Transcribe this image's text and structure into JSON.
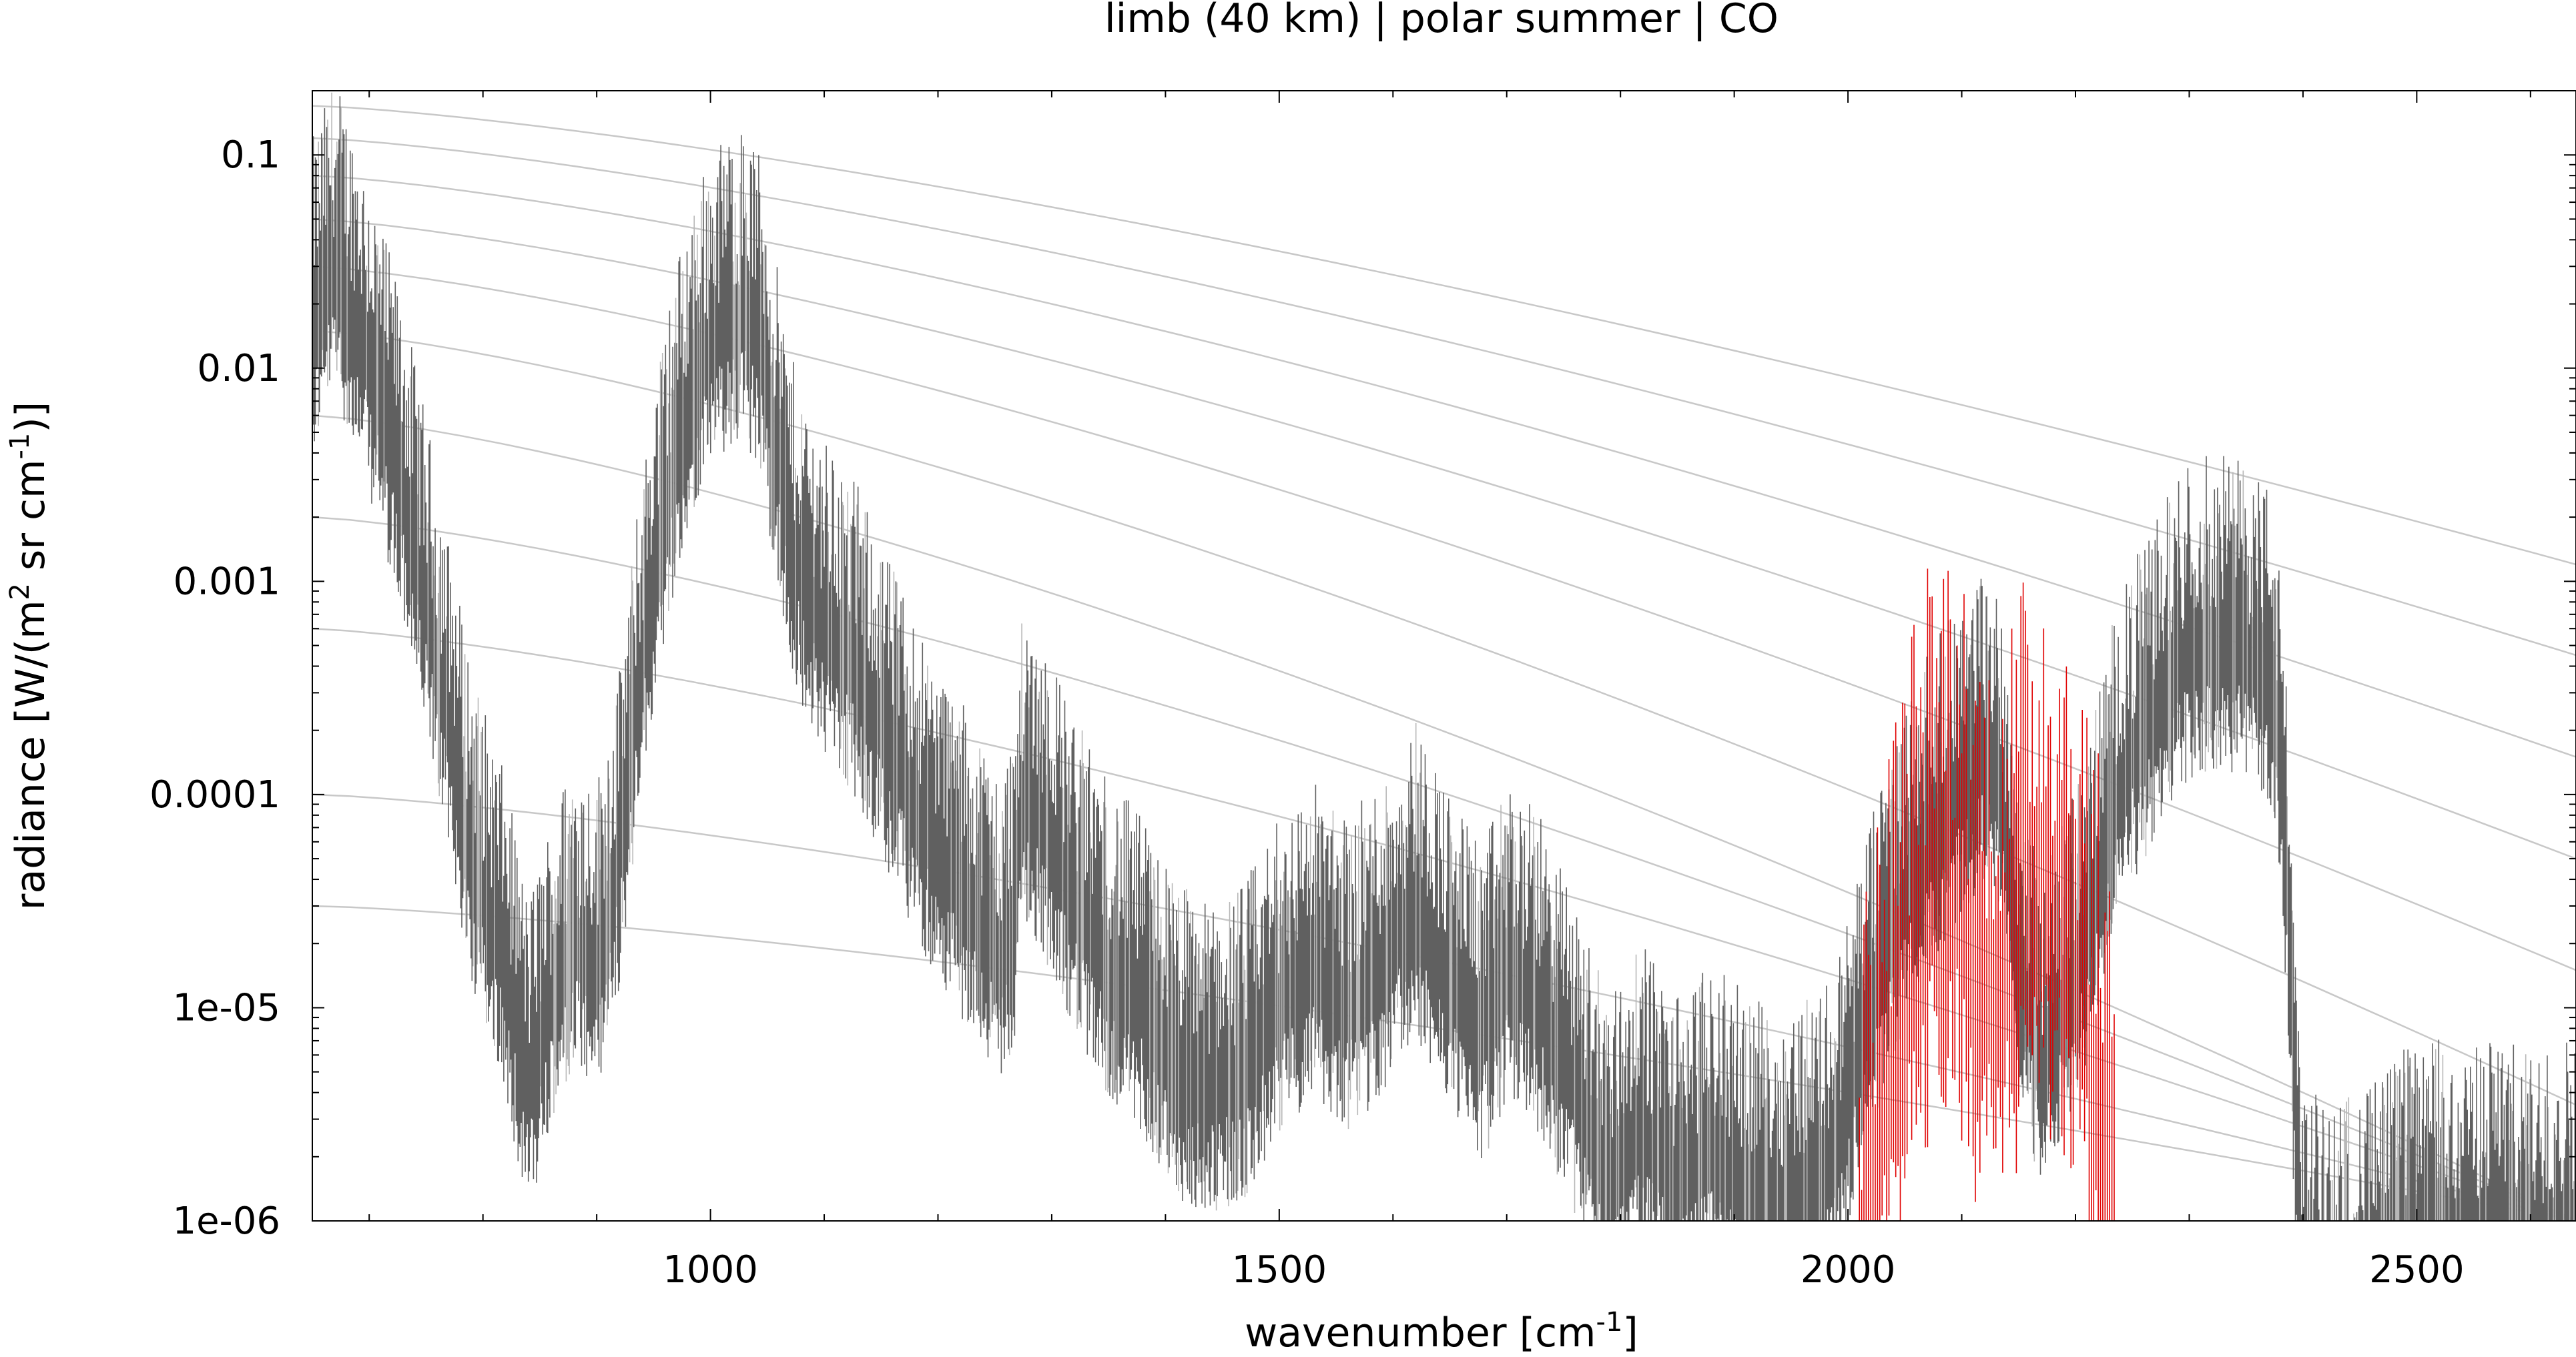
{
  "chart_data": {
    "type": "line",
    "title": "limb (40 km) | polar summer | CO",
    "xlabel": "wavenumber [cm⁻¹]",
    "ylabel": "radiance [W/(m² sr cm⁻¹)]",
    "xlim": [
      650,
      2640
    ],
    "ylim": [
      1e-06,
      0.2
    ],
    "yscale": "log",
    "grid": false,
    "legend": "none",
    "x_ticks": [
      {
        "value": 1000,
        "label": "1000"
      },
      {
        "value": 1500,
        "label": "1500"
      },
      {
        "value": 2000,
        "label": "2000"
      },
      {
        "value": 2500,
        "label": "2500"
      }
    ],
    "y_ticks": [
      {
        "value": 0.1,
        "label": "0.1"
      },
      {
        "value": 0.01,
        "label": "0.01"
      },
      {
        "value": 0.001,
        "label": "0.001"
      },
      {
        "value": 0.0001,
        "label": "0.0001"
      },
      {
        "value": 1e-05,
        "label": "1e-05"
      },
      {
        "value": 1e-06,
        "label": "1e-06"
      }
    ],
    "colors": {
      "total_spectrum": "#606060",
      "secondary_spectrum": "#b8b8b8",
      "co_contribution": "#e00000",
      "planck_curves": "#c8c8c8"
    },
    "series": [
      {
        "key": "total",
        "x": [
          650,
          670,
          700,
          730,
          760,
          790,
          820,
          840,
          860,
          880,
          900,
          920,
          935,
          950,
          970,
          990,
          1010,
          1030,
          1045,
          1055,
          1070,
          1090,
          1110,
          1130,
          1150,
          1175,
          1200,
          1230,
          1255,
          1268,
          1275,
          1290,
          1320,
          1350,
          1380,
          1410,
          1440,
          1470,
          1500,
          1530,
          1560,
          1590,
          1620,
          1650,
          1680,
          1700,
          1730,
          1760,
          1790,
          1820,
          1850,
          1880,
          1910,
          1940,
          1970,
          1990,
          2010,
          2030,
          2060,
          2090,
          2120,
          2135,
          2150,
          2170,
          2190,
          2210,
          2230,
          2250,
          2270,
          2290,
          2310,
          2330,
          2350,
          2365,
          2375,
          2385,
          2392,
          2400,
          2420,
          2450,
          2480,
          2510,
          2540,
          2570,
          2600,
          2640
        ],
        "y": [
          0.03,
          0.06,
          0.02,
          0.005,
          0.0008,
          0.0001,
          3e-05,
          8e-06,
          2e-05,
          4e-05,
          3e-05,
          0.0001,
          0.0005,
          0.002,
          0.008,
          0.02,
          0.03,
          0.035,
          0.025,
          0.01,
          0.003,
          0.0015,
          0.001,
          0.0007,
          0.0004,
          0.0002,
          0.0001,
          6e-05,
          3e-05,
          6e-05,
          0.0002,
          0.00015,
          6e-05,
          3e-05,
          2e-05,
          1e-05,
          8e-06,
          1e-05,
          2e-05,
          3e-05,
          2e-05,
          3e-05,
          6e-05,
          2.5e-05,
          1.5e-05,
          3e-05,
          2e-05,
          8e-06,
          3e-06,
          5e-06,
          3e-06,
          4e-06,
          3e-06,
          2.5e-06,
          3e-06,
          4e-06,
          1.2e-05,
          3e-05,
          9e-05,
          0.00018,
          0.0003,
          0.0002,
          3e-05,
          1e-05,
          2e-05,
          4e-05,
          0.00015,
          0.0003,
          0.0005,
          0.0008,
          0.001,
          0.001,
          0.0009,
          0.0008,
          0.0006,
          0.0001,
          1e-05,
          1e-06,
          1e-06,
          1e-06,
          1.5e-06,
          2e-06,
          1.5e-06,
          2e-06,
          1.5e-06,
          2e-06
        ]
      },
      {
        "key": "co",
        "x": [
          2010,
          2030,
          2050,
          2070,
          2085,
          2100,
          2115,
          2130,
          2145,
          2160,
          2175,
          2190,
          2205,
          2220,
          2235
        ],
        "y": [
          2e-06,
          1e-05,
          4e-05,
          0.0001,
          0.00015,
          0.0001,
          5e-05,
          4e-05,
          6e-05,
          0.0001,
          0.00012,
          8e-05,
          4e-05,
          1.2e-05,
          3e-06
        ]
      },
      {
        "key": "planck",
        "note_values_are_at_x_650_and_2640": true,
        "x": [
          650,
          2640
        ],
        "curves": [
          [
            0.17,
            0.0012
          ],
          [
            0.12,
            0.00045
          ],
          [
            0.08,
            0.00015
          ],
          [
            0.05,
            5e-05
          ],
          [
            0.03,
            1.5e-05
          ],
          [
            0.015,
            3.5e-06
          ],
          [
            0.006,
            1e-06
          ],
          [
            0.002,
            1e-06
          ],
          [
            0.0006,
            1e-06
          ],
          [
            0.0001,
            1e-06
          ],
          [
            3e-05,
            1e-06
          ]
        ]
      }
    ]
  }
}
